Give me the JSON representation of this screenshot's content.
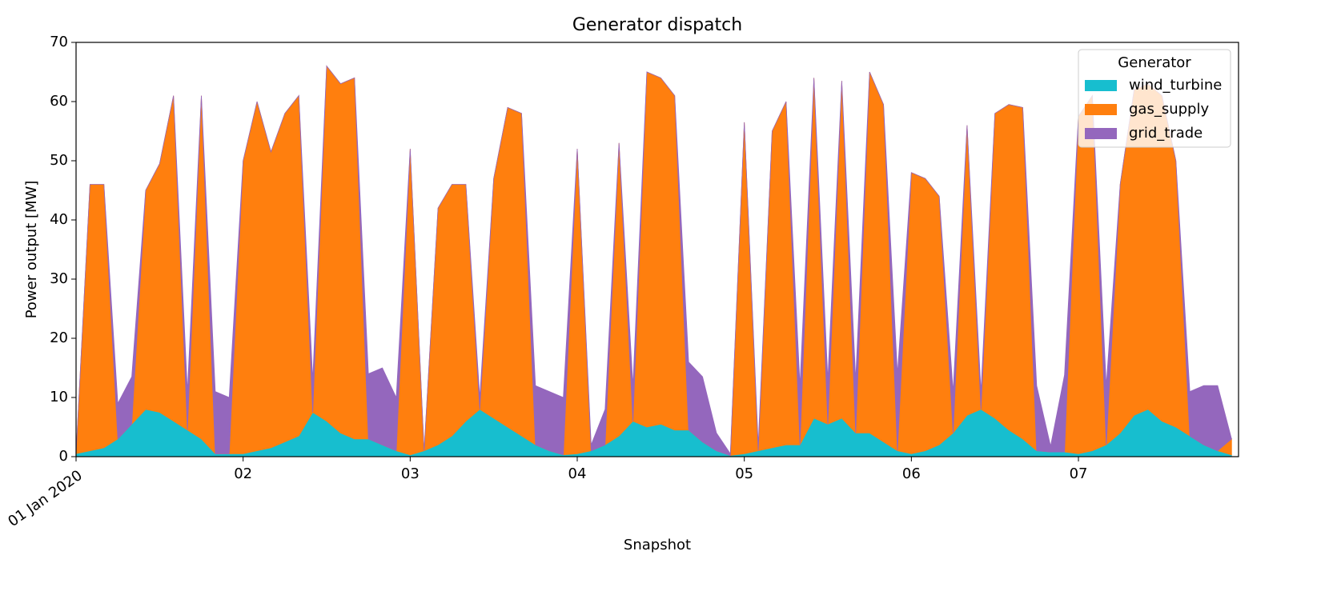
{
  "chart_data": {
    "type": "stacked_area",
    "title": "Generator dispatch",
    "x_label": "Snapshot",
    "y_label": "Power output [MW]",
    "legend_title": "Generator",
    "legend": "upper right",
    "x": [
      0,
      2,
      4,
      6,
      8,
      10,
      12,
      14,
      16,
      18,
      20,
      22,
      24,
      26,
      28,
      30,
      32,
      34,
      36,
      38,
      40,
      42,
      44,
      46,
      48,
      50,
      52,
      54,
      56,
      58,
      60,
      62,
      64,
      66,
      68,
      70,
      72,
      74,
      76,
      78,
      80,
      82,
      84,
      86,
      88,
      90,
      92,
      94,
      96,
      98,
      100,
      102,
      104,
      106,
      108,
      110,
      112,
      114,
      116,
      118,
      120,
      122,
      124,
      126,
      128,
      130,
      132,
      134,
      136,
      138,
      140,
      142,
      144,
      146,
      148,
      150,
      152,
      154,
      156,
      158,
      160,
      162,
      164,
      166
    ],
    "xlim": [
      0,
      167
    ],
    "xticks": [
      {
        "value": 0,
        "label": "01 Jan 2020"
      },
      {
        "value": 24,
        "label": "02"
      },
      {
        "value": 48,
        "label": "03"
      },
      {
        "value": 72,
        "label": "04"
      },
      {
        "value": 96,
        "label": "05"
      },
      {
        "value": 120,
        "label": "06"
      },
      {
        "value": 144,
        "label": "07"
      }
    ],
    "ylim": [
      0,
      70
    ],
    "yticks": [
      0,
      10,
      20,
      30,
      40,
      50,
      60,
      70
    ],
    "series": [
      {
        "name": "wind_turbine",
        "color": "#17becf",
        "values": [
          0.5,
          1,
          1.5,
          3,
          5.5,
          8,
          7.5,
          6,
          4.5,
          3,
          0.5,
          0.5,
          0.5,
          1,
          1.5,
          2.5,
          3.5,
          7.5,
          6,
          4,
          3,
          3,
          2,
          1,
          0.3,
          1,
          2,
          3.5,
          6,
          8,
          6.5,
          5,
          3.5,
          2,
          1,
          0.3,
          0.5,
          1,
          2,
          3.5,
          6,
          5,
          5.5,
          4.5,
          4.5,
          2.5,
          1,
          0.2,
          0.5,
          1,
          1.5,
          2,
          2,
          6.5,
          5.5,
          6.5,
          4,
          4,
          2.5,
          1,
          0.5,
          1,
          2,
          4,
          7,
          8,
          6.5,
          4.5,
          3,
          1,
          0.8,
          0.8,
          0.5,
          1,
          2,
          4,
          7,
          8,
          6,
          5,
          3.5,
          2,
          1,
          0.3
        ]
      },
      {
        "name": "gas_supply",
        "color": "#ff7f0e",
        "values": [
          0,
          45,
          44.5,
          0,
          0,
          37,
          42,
          55,
          0,
          58,
          0,
          0,
          49.5,
          59,
          50,
          55.5,
          57.5,
          0,
          60,
          59,
          61,
          0,
          0,
          0,
          51.7,
          0,
          40,
          42.5,
          40,
          0,
          40.5,
          54,
          54.5,
          0,
          0,
          0,
          51.5,
          0,
          0,
          49.5,
          0,
          60,
          58.5,
          56.5,
          0,
          0,
          0,
          0,
          56,
          0,
          53.5,
          58,
          0,
          57.5,
          0,
          57,
          0,
          61,
          57,
          0,
          47.5,
          46,
          42,
          0,
          49,
          0,
          51.5,
          55,
          56,
          0,
          0,
          0,
          57,
          60,
          0,
          42,
          55,
          55,
          55,
          45,
          0,
          0,
          0,
          2.7
        ]
      },
      {
        "name": "grid_trade",
        "color": "#9467bd",
        "values": [
          0,
          0,
          0,
          6,
          8,
          0,
          0,
          0,
          6.5,
          0,
          10.5,
          9.5,
          0,
          0,
          0,
          0,
          0,
          5.5,
          0,
          0,
          0,
          11,
          13,
          9,
          0,
          0,
          0,
          0,
          0,
          2,
          0,
          0,
          0,
          10,
          10,
          9.7,
          0,
          1,
          6,
          0,
          6,
          0,
          0,
          0,
          11.5,
          11,
          3,
          0.3,
          0,
          1,
          0,
          0,
          10,
          0,
          7.5,
          0,
          9,
          0,
          0,
          13,
          0,
          0,
          0,
          7,
          0,
          3,
          0,
          0,
          0,
          11,
          1,
          13,
          0,
          0,
          10,
          0,
          0,
          0,
          0,
          0,
          7.5,
          10,
          11,
          0
        ]
      }
    ]
  }
}
